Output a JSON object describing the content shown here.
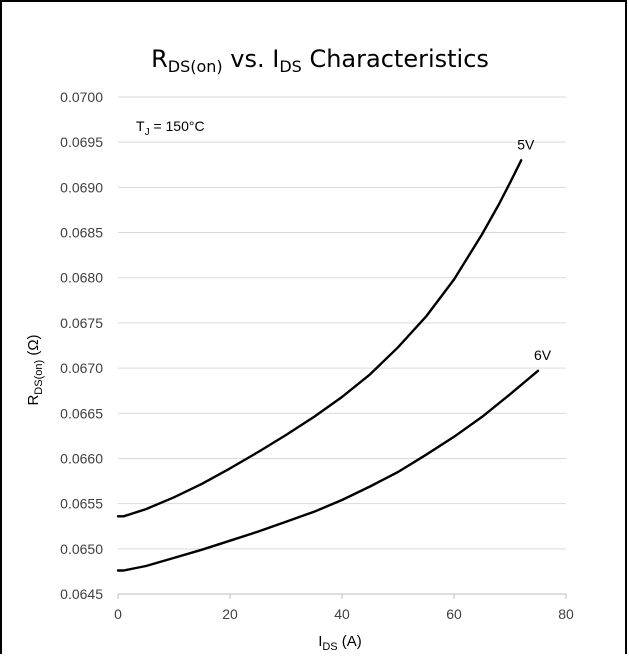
{
  "chart_data": {
    "type": "line",
    "title": "RDS(on) vs. IDS Characteristics",
    "title_parts": {
      "r": "R",
      "r_sub": "DS(on)",
      "mid": " vs. I",
      "i_sub": "DS",
      "tail": " Characteristics"
    },
    "xlabel": "IDS (A)",
    "xlabel_parts": {
      "main": "I",
      "sub": "DS",
      "unit": " (A)"
    },
    "ylabel": "RDS(on) (Ω)",
    "ylabel_parts": {
      "main": "R",
      "sub": "DS(on)",
      "unit": " (Ω)"
    },
    "annotation": "TJ = 150°C",
    "annotation_parts": {
      "main": "T",
      "sub": "J",
      "rest": " = 150°C"
    },
    "xlim": [
      0,
      80
    ],
    "ylim": [
      0.0645,
      0.07
    ],
    "xticks": [
      0,
      20,
      40,
      60,
      80
    ],
    "xtick_labels": [
      "0",
      "20",
      "40",
      "60",
      "80"
    ],
    "yticks": [
      0.0645,
      0.065,
      0.0655,
      0.066,
      0.0665,
      0.067,
      0.0675,
      0.068,
      0.0685,
      0.069,
      0.0695,
      0.07
    ],
    "ytick_labels": [
      "0.0645",
      "0.0650",
      "0.0655",
      "0.0660",
      "0.0665",
      "0.0670",
      "0.0675",
      "0.0680",
      "0.0685",
      "0.0690",
      "0.0695",
      "0.0700"
    ],
    "grid": true,
    "legend": "none",
    "series": [
      {
        "name": "5V",
        "x": [
          0,
          1,
          5,
          10,
          15,
          20,
          25,
          30,
          35,
          40,
          45,
          50,
          55,
          60,
          65,
          68,
          70,
          72
        ],
        "y": [
          0.06536,
          0.06536,
          0.06544,
          0.06557,
          0.06572,
          0.06589,
          0.06607,
          0.06626,
          0.06646,
          0.06668,
          0.06693,
          0.06723,
          0.06757,
          0.06798,
          0.06848,
          0.06881,
          0.06905,
          0.0693
        ]
      },
      {
        "name": "6V",
        "x": [
          0,
          1,
          5,
          10,
          15,
          20,
          25,
          30,
          35,
          40,
          45,
          50,
          55,
          60,
          65,
          70,
          75
        ],
        "y": [
          0.06476,
          0.06476,
          0.06481,
          0.0649,
          0.06499,
          0.06509,
          0.06519,
          0.0653,
          0.06541,
          0.06554,
          0.06569,
          0.06585,
          0.06604,
          0.06624,
          0.06646,
          0.06671,
          0.06697
        ]
      }
    ]
  }
}
